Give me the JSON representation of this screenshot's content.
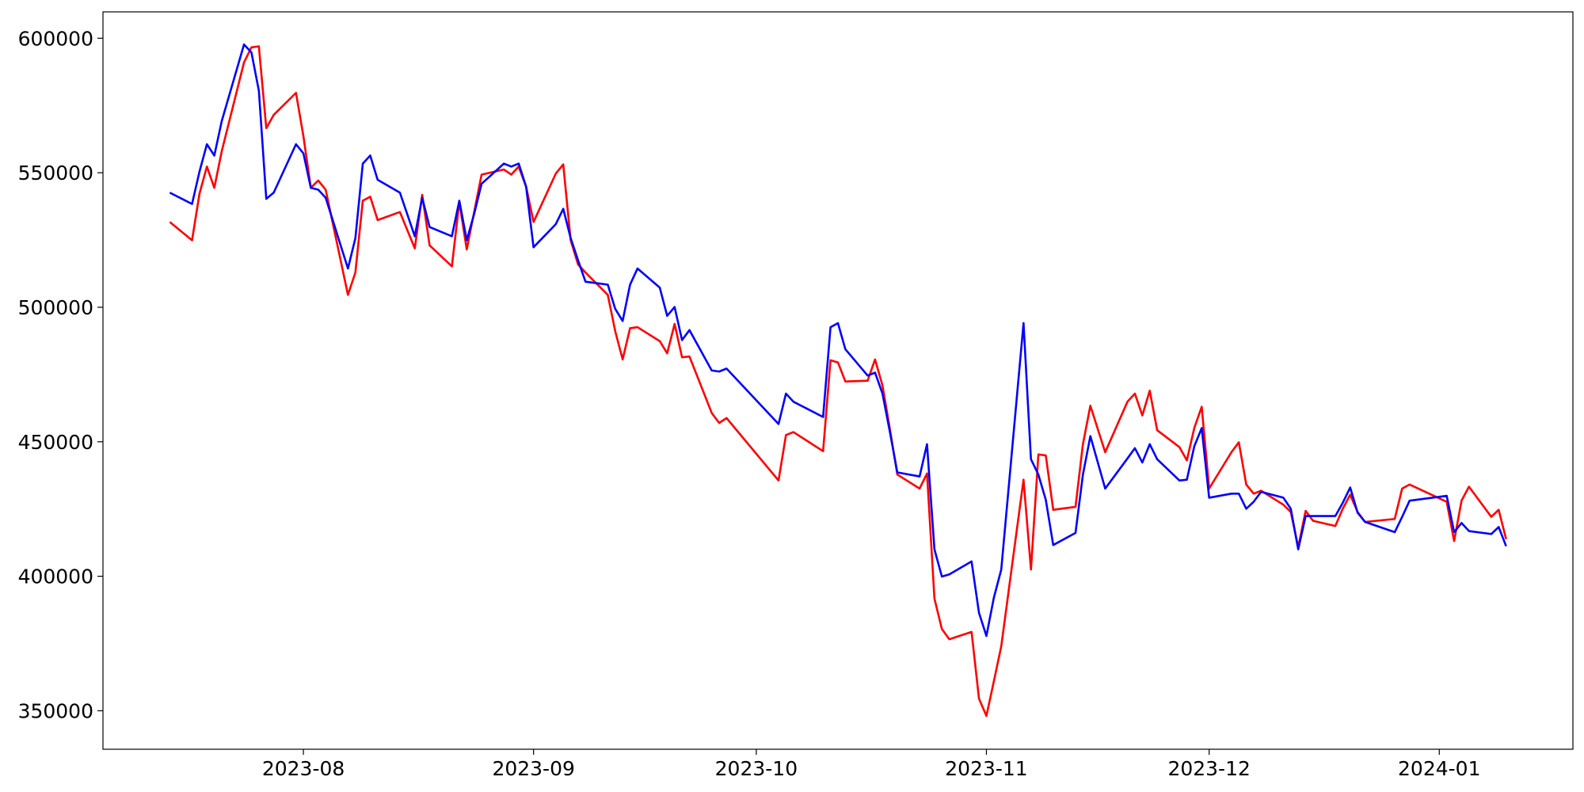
{
  "chart_data": {
    "type": "line",
    "x": [
      "2023-07-14",
      "2023-07-17",
      "2023-07-18",
      "2023-07-19",
      "2023-07-20",
      "2023-07-21",
      "2023-07-24",
      "2023-07-25",
      "2023-07-26",
      "2023-07-27",
      "2023-07-28",
      "2023-07-31",
      "2023-08-01",
      "2023-08-02",
      "2023-08-03",
      "2023-08-04",
      "2023-08-07",
      "2023-08-08",
      "2023-08-09",
      "2023-08-10",
      "2023-08-11",
      "2023-08-14",
      "2023-08-16",
      "2023-08-17",
      "2023-08-18",
      "2023-08-21",
      "2023-08-22",
      "2023-08-23",
      "2023-08-24",
      "2023-08-25",
      "2023-08-28",
      "2023-08-29",
      "2023-08-30",
      "2023-08-31",
      "2023-09-01",
      "2023-09-04",
      "2023-09-05",
      "2023-09-06",
      "2023-09-07",
      "2023-09-08",
      "2023-09-11",
      "2023-09-12",
      "2023-09-13",
      "2023-09-14",
      "2023-09-15",
      "2023-09-18",
      "2023-09-19",
      "2023-09-20",
      "2023-09-21",
      "2023-09-22",
      "2023-09-25",
      "2023-09-26",
      "2023-09-27",
      "2023-10-04",
      "2023-10-05",
      "2023-10-06",
      "2023-10-10",
      "2023-10-11",
      "2023-10-12",
      "2023-10-13",
      "2023-10-16",
      "2023-10-17",
      "2023-10-18",
      "2023-10-19",
      "2023-10-20",
      "2023-10-23",
      "2023-10-24",
      "2023-10-25",
      "2023-10-26",
      "2023-10-27",
      "2023-10-30",
      "2023-10-31",
      "2023-11-01",
      "2023-11-02",
      "2023-11-03",
      "2023-11-06",
      "2023-11-07",
      "2023-11-08",
      "2023-11-09",
      "2023-11-10",
      "2023-11-13",
      "2023-11-14",
      "2023-11-15",
      "2023-11-17",
      "2023-11-20",
      "2023-11-21",
      "2023-11-22",
      "2023-11-23",
      "2023-11-24",
      "2023-11-27",
      "2023-11-28",
      "2023-11-29",
      "2023-11-30",
      "2023-12-01",
      "2023-12-04",
      "2023-12-05",
      "2023-12-06",
      "2023-12-07",
      "2023-12-08",
      "2023-12-11",
      "2023-12-12",
      "2023-12-13",
      "2023-12-14",
      "2023-12-15",
      "2023-12-18",
      "2023-12-19",
      "2023-12-20",
      "2023-12-21",
      "2023-12-22",
      "2023-12-26",
      "2023-12-27",
      "2023-12-28",
      "2024-01-02",
      "2024-01-03",
      "2024-01-04",
      "2024-01-05",
      "2024-01-08",
      "2024-01-09",
      "2024-01-10"
    ],
    "series": [
      {
        "color": "#ff0000",
        "values": [
          531700,
          524900,
          542200,
          552300,
          544400,
          558000,
          591000,
          596600,
          597000,
          566600,
          571500,
          579700,
          563600,
          544400,
          547100,
          543700,
          504600,
          512900,
          539600,
          541100,
          532400,
          535400,
          521900,
          541800,
          523000,
          515200,
          539200,
          521500,
          535400,
          549300,
          551200,
          549300,
          552300,
          544800,
          531700,
          549700,
          553100,
          524900,
          515900,
          512900,
          504600,
          491100,
          480600,
          492200,
          492600,
          487400,
          482900,
          493800,
          481400,
          481700,
          460700,
          457000,
          458800,
          435600,
          452500,
          453600,
          446500,
          480300,
          479500,
          472400,
          472700,
          480600,
          470900,
          454700,
          437800,
          432600,
          438200,
          391700,
          380400,
          376600,
          379300,
          354500,
          348100,
          360900,
          374000,
          435900,
          402500,
          445300,
          444900,
          424700,
          425800,
          449100,
          463400,
          446100,
          464900,
          467900,
          459800,
          469000,
          454300,
          448000,
          443100,
          455100,
          463000,
          432600,
          446100,
          449800,
          434100,
          430700,
          431800,
          426600,
          423900,
          410800,
          424300,
          420600,
          418700,
          425100,
          430300,
          423900,
          420200,
          421300,
          432600,
          434100,
          427700,
          413100,
          428100,
          433300,
          422100,
          424700,
          413800
        ]
      },
      {
        "color": "#0000ff",
        "values": [
          542600,
          538400,
          550400,
          560600,
          556400,
          569200,
          597700,
          594700,
          580500,
          540300,
          542600,
          560600,
          557200,
          544400,
          543700,
          540700,
          514400,
          525700,
          553400,
          556400,
          547400,
          542600,
          526400,
          540700,
          529800,
          526400,
          539600,
          524900,
          534700,
          545900,
          553400,
          552300,
          553400,
          544800,
          522300,
          530900,
          536600,
          525700,
          517400,
          509500,
          508400,
          499400,
          494900,
          508400,
          514400,
          507300,
          496800,
          500100,
          487800,
          491500,
          476500,
          476100,
          477200,
          456600,
          467900,
          464900,
          459200,
          492600,
          494100,
          484400,
          474600,
          475700,
          467900,
          453600,
          438600,
          437100,
          449100,
          410000,
          399900,
          400700,
          405500,
          386400,
          377800,
          392000,
          402500,
          494100,
          443500,
          437800,
          428400,
          411600,
          416100,
          437800,
          452100,
          432600,
          443800,
          447600,
          442300,
          449100,
          443500,
          435600,
          435900,
          448300,
          455100,
          429200,
          430700,
          430700,
          425100,
          427700,
          431400,
          429200,
          425100,
          410000,
          422400,
          422400,
          422400,
          427300,
          433000,
          423600,
          420200,
          416400,
          422100,
          428100,
          429900,
          416400,
          419800,
          416800,
          415700,
          418300,
          411200
        ]
      }
    ],
    "xlim": [
      "2023-07-05",
      "2024-01-19"
    ],
    "xticks": [
      {
        "value": "2023-08-01",
        "label": "2023-08"
      },
      {
        "value": "2023-09-01",
        "label": "2023-09"
      },
      {
        "value": "2023-10-01",
        "label": "2023-10"
      },
      {
        "value": "2023-11-01",
        "label": "2023-11"
      },
      {
        "value": "2023-12-01",
        "label": "2023-12"
      },
      {
        "value": "2024-01-01",
        "label": "2024-01"
      }
    ],
    "ylim": [
      335700,
      609800
    ],
    "yticks": [
      350000,
      400000,
      450000,
      500000,
      550000,
      600000
    ],
    "grid": false
  }
}
